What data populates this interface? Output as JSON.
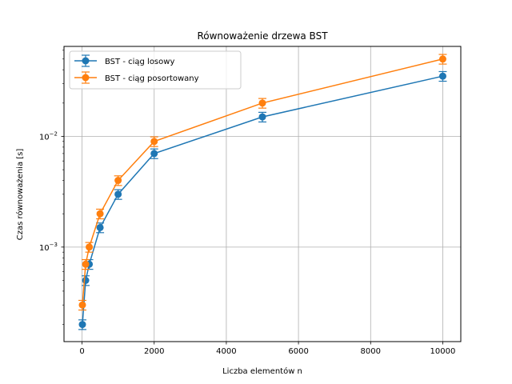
{
  "chart_data": {
    "type": "line",
    "title": "Równoważenie drzewa BST",
    "xlabel": "Liczba elementów n",
    "ylabel": "Czas równoważenia [s]",
    "yscale": "log",
    "xlim": [
      -500,
      10500
    ],
    "ylim": [
      0.00014,
      0.065
    ],
    "xticks": [
      0,
      2000,
      4000,
      6000,
      8000,
      10000
    ],
    "xtick_labels": [
      "0",
      "2000",
      "4000",
      "6000",
      "8000",
      "10000"
    ],
    "yticks": [
      0.001,
      0.01
    ],
    "ytick_label_bases": [
      "10",
      "10"
    ],
    "ytick_label_exps": [
      "−3",
      "−2"
    ],
    "grid": true,
    "legend": "upper-left",
    "x": [
      10,
      100,
      200,
      500,
      1000,
      2000,
      5000,
      10000
    ],
    "series": [
      {
        "name": "BST - ciąg losowy",
        "color": "#1f77b4",
        "values": [
          0.0002,
          0.0005,
          0.0007,
          0.0015,
          0.003,
          0.007,
          0.015,
          0.035
        ],
        "errors": [
          2e-05,
          5e-05,
          7e-05,
          0.00015,
          0.0003,
          0.0007,
          0.0015,
          0.0035
        ]
      },
      {
        "name": "BST - ciąg posortowany",
        "color": "#ff7f0e",
        "values": [
          0.0003,
          0.0007,
          0.001,
          0.002,
          0.004,
          0.009,
          0.02,
          0.05
        ],
        "errors": [
          3e-05,
          7e-05,
          0.0001,
          0.0002,
          0.0004,
          0.0009,
          0.002,
          0.005
        ]
      }
    ]
  }
}
